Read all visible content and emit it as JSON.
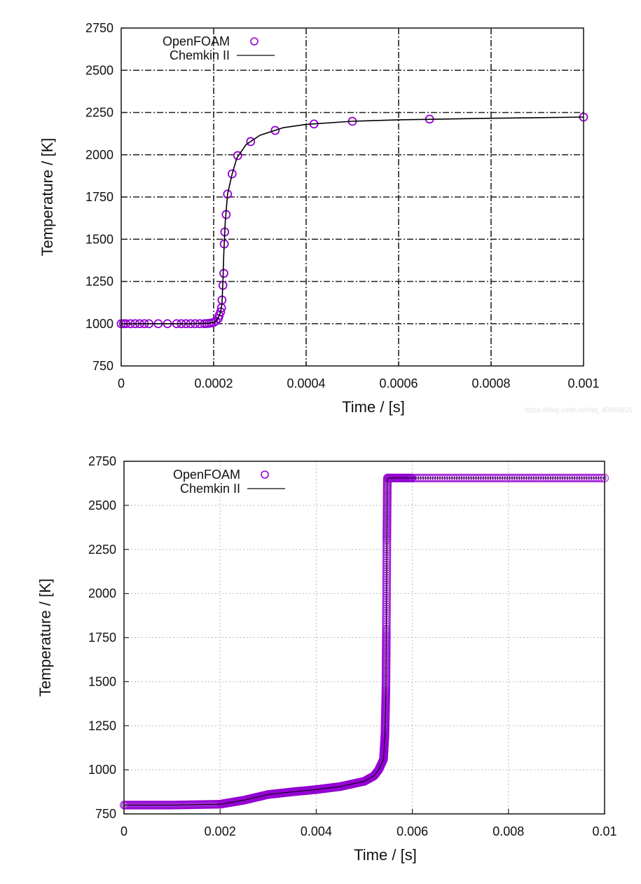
{
  "watermark": "https://blog.csdn.net/qq_40583925",
  "chart_data": [
    {
      "type": "line",
      "title": "",
      "xlabel": "Time / [s]",
      "ylabel": "Temperature / [K]",
      "xlim": [
        0,
        0.001
      ],
      "ylim": [
        750,
        2750
      ],
      "xticks": [
        0,
        0.0002,
        0.0004,
        0.0006,
        0.0008,
        0.001
      ],
      "xtick_labels": [
        "0",
        "0.0002",
        "0.0004",
        "0.0006",
        "0.0008",
        "0.001"
      ],
      "yticks": [
        750,
        1000,
        1250,
        1500,
        1750,
        2000,
        2250,
        2500,
        2750
      ],
      "ytick_labels": [
        "750",
        "1000",
        "1250",
        "1500",
        "1750",
        "2000",
        "2250",
        "2500",
        "2750"
      ],
      "grid": "dash-dot, major",
      "legend_position": "top-left",
      "series": [
        {
          "name": "OpenFOAM",
          "style": "markers (open circle)",
          "color": "#9400d3",
          "x": [
            0,
            5e-06,
            1e-05,
            2e-05,
            3e-05,
            4e-05,
            5e-05,
            6e-05,
            8e-05,
            0.0001,
            0.00012,
            0.00013,
            0.00014,
            0.00015,
            0.00016,
            0.00017,
            0.00018,
            0.000185,
            0.00019,
            0.000195,
            0.0002,
            0.000205,
            0.00021,
            0.000212,
            0.000215,
            0.000217,
            0.000218,
            0.00022,
            0.000222,
            0.000223,
            0.000224,
            0.000227,
            0.00023,
            0.00024,
            0.000252,
            0.00028,
            0.000333,
            0.000417,
            0.0005,
            0.000667,
            0.001
          ],
          "y": [
            1000,
            1000,
            1000,
            1000,
            1000,
            1000,
            1000,
            1000,
            1000,
            1000,
            1000,
            1000,
            1000,
            1000,
            1000,
            1000,
            1000,
            1001,
            1002,
            1004,
            1008,
            1016,
            1030,
            1049,
            1070,
            1094,
            1140,
            1227,
            1298,
            1472,
            1543,
            1646,
            1767,
            1887,
            1995,
            2078,
            2144,
            2182,
            2198,
            2211,
            2223
          ]
        },
        {
          "name": "Chemkin II",
          "style": "solid line",
          "color": "#000000",
          "x": [
            0,
            0.00015,
            0.00019,
            0.0002,
            0.000205,
            0.00021,
            0.000215,
            0.000218,
            0.00022,
            0.000222,
            0.000225,
            0.00023,
            0.00024,
            0.00025,
            0.00027,
            0.0003,
            0.00035,
            0.0004,
            0.0005,
            0.0006,
            0.0008,
            0.001
          ],
          "y": [
            1000,
            1000,
            1003,
            1008,
            1016,
            1035,
            1070,
            1120,
            1250,
            1420,
            1600,
            1767,
            1887,
            1980,
            2060,
            2115,
            2160,
            2180,
            2198,
            2207,
            2216,
            2223
          ]
        }
      ]
    },
    {
      "type": "line",
      "title": "",
      "xlabel": "Time / [s]",
      "ylabel": "Temperature / [K]",
      "xlim": [
        0,
        0.01
      ],
      "ylim": [
        750,
        2750
      ],
      "xticks": [
        0,
        0.002,
        0.004,
        0.006,
        0.008,
        0.01
      ],
      "xtick_labels": [
        "0",
        "0.002",
        "0.004",
        "0.006",
        "0.008",
        "0.01"
      ],
      "yticks": [
        750,
        1000,
        1250,
        1500,
        1750,
        2000,
        2250,
        2500,
        2750
      ],
      "ytick_labels": [
        "750",
        "1000",
        "1250",
        "1500",
        "1750",
        "2000",
        "2250",
        "2500",
        "2750"
      ],
      "grid": "dotted, major",
      "legend_position": "top-left",
      "series": [
        {
          "name": "OpenFOAM",
          "style": "markers (open circle, dense)",
          "color": "#9400d3",
          "x": [
            0,
            0.001,
            0.002,
            0.0025,
            0.003,
            0.0035,
            0.004,
            0.0045,
            0.005,
            0.0052,
            0.0053,
            0.0054,
            0.00543,
            0.00545,
            0.00546,
            0.00547,
            0.00548,
            0.006,
            0.008,
            0.01
          ],
          "y": [
            800,
            800,
            805,
            828,
            860,
            875,
            888,
            905,
            935,
            965,
            1000,
            1060,
            1200,
            1450,
            1800,
            2300,
            2655,
            2655,
            2655,
            2655
          ]
        },
        {
          "name": "Chemkin II",
          "style": "solid line",
          "color": "#000000",
          "x": [
            0,
            0.001,
            0.002,
            0.0025,
            0.003,
            0.0035,
            0.004,
            0.0045,
            0.005,
            0.0052,
            0.0053,
            0.0054,
            0.00543,
            0.00545,
            0.00547,
            0.00548,
            0.006,
            0.008,
            0.01
          ],
          "y": [
            800,
            800,
            805,
            828,
            860,
            875,
            888,
            905,
            935,
            965,
            1000,
            1060,
            1200,
            1450,
            2300,
            2655,
            2655,
            2655,
            2655
          ]
        }
      ]
    }
  ]
}
